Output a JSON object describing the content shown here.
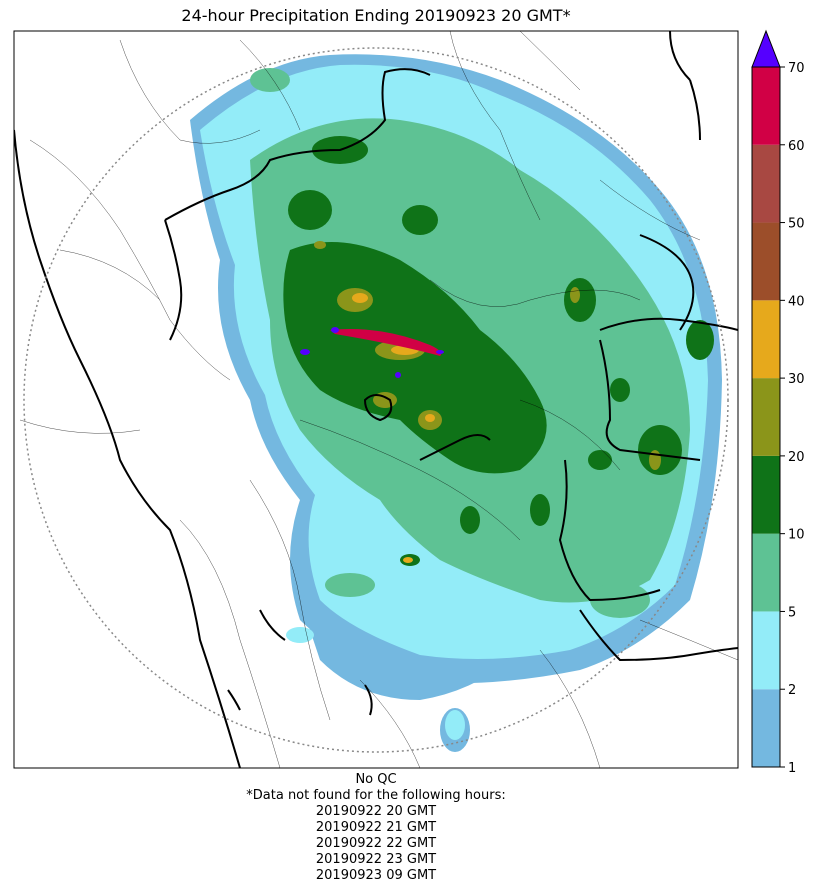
{
  "title": "24-hour Precipitation Ending 20190923 20 GMT*",
  "notes": {
    "qc": "No QC",
    "missing_header": "*Data not found for the following hours:",
    "missing_hours": [
      "20190922 20 GMT",
      "20190922 21 GMT",
      "20190922 22 GMT",
      "20190922 23 GMT",
      "20190923 09 GMT"
    ]
  },
  "colorbar": {
    "tick_labels": [
      "1",
      "2",
      "5",
      "10",
      "20",
      "30",
      "40",
      "50",
      "60",
      "70"
    ],
    "colors": [
      "#74b8e0",
      "#93ecf8",
      "#5ec294",
      "#0f7318",
      "#8b951a",
      "#e6a91c",
      "#9c4e2a",
      "#a84842",
      "#d10045"
    ],
    "extend_color": "#5500ff"
  },
  "map": {
    "radar_range_ring_color": "#888888",
    "boundary_color": "#000000"
  }
}
